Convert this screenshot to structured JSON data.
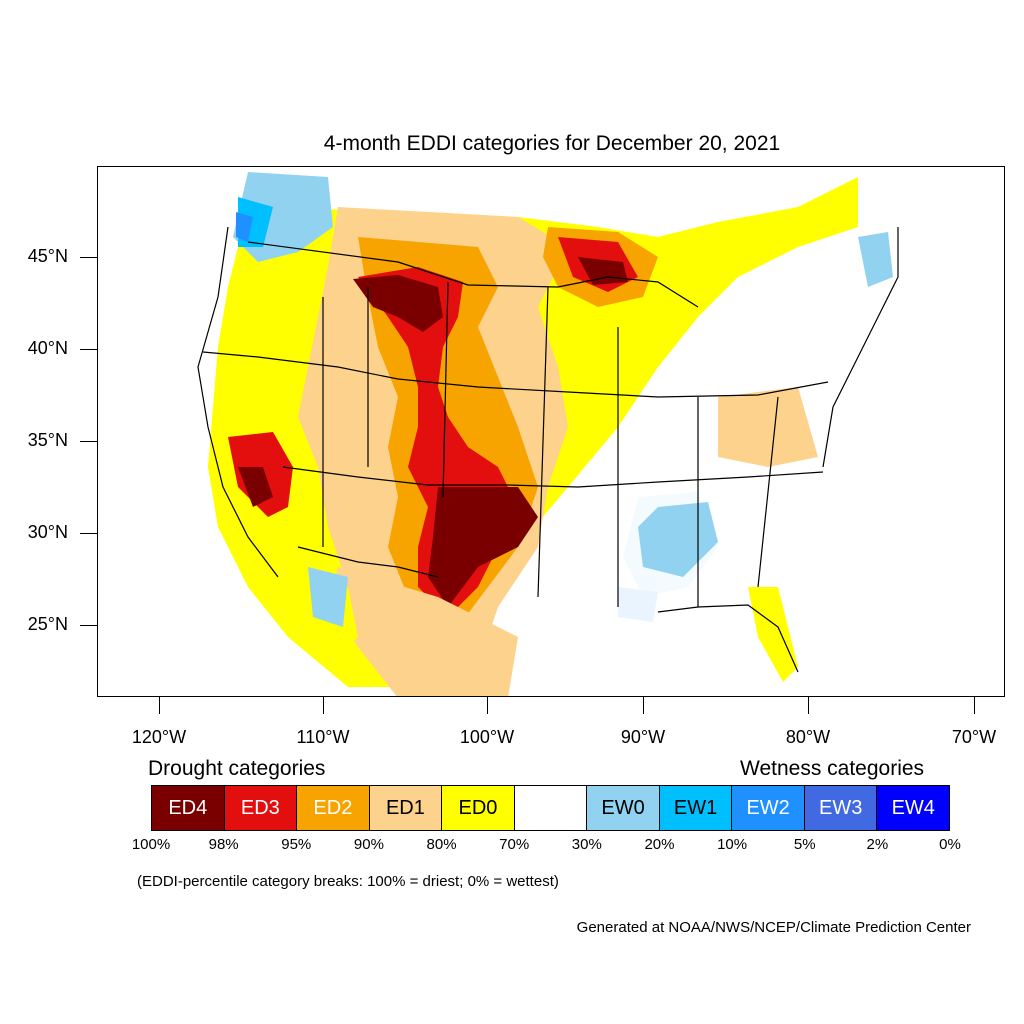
{
  "title": "4-month EDDI categories for December 20, 2021",
  "map": {
    "lat_labels": [
      "45°N",
      "40°N",
      "35°N",
      "30°N",
      "25°N"
    ],
    "lon_labels": [
      "120°W",
      "110°W",
      "100°W",
      "90°W",
      "80°W",
      "70°W"
    ]
  },
  "legend": {
    "drought_heading": "Drought categories",
    "wetness_heading": "Wetness categories",
    "categories": [
      {
        "label": "ED4",
        "color": "#7a0000",
        "text_color": "#ffffff"
      },
      {
        "label": "ED3",
        "color": "#e30e0e",
        "text_color": "#ffffff"
      },
      {
        "label": "ED2",
        "color": "#f7a400",
        "text_color": "#ffffff"
      },
      {
        "label": "ED1",
        "color": "#fcd28c",
        "text_color": "#000000"
      },
      {
        "label": "ED0",
        "color": "#ffff00",
        "text_color": "#000000"
      },
      {
        "label": "",
        "color": "#ffffff",
        "text_color": "#000000"
      },
      {
        "label": "EW0",
        "color": "#91d2f0",
        "text_color": "#000000"
      },
      {
        "label": "EW1",
        "color": "#00bfff",
        "text_color": "#000000"
      },
      {
        "label": "EW2",
        "color": "#1e90ff",
        "text_color": "#ffffff"
      },
      {
        "label": "EW3",
        "color": "#4169e1",
        "text_color": "#ffffff"
      },
      {
        "label": "EW4",
        "color": "#0000ff",
        "text_color": "#ffffff"
      }
    ],
    "breaks": [
      "100%",
      "98%",
      "95%",
      "90%",
      "80%",
      "70%",
      "30%",
      "20%",
      "10%",
      "5%",
      "2%",
      "0%"
    ]
  },
  "note": "(EDDI-percentile category breaks: 100% = driest; 0% = wettest)",
  "credit": "Generated at NOAA/NWS/NCEP/Climate Prediction Center"
}
